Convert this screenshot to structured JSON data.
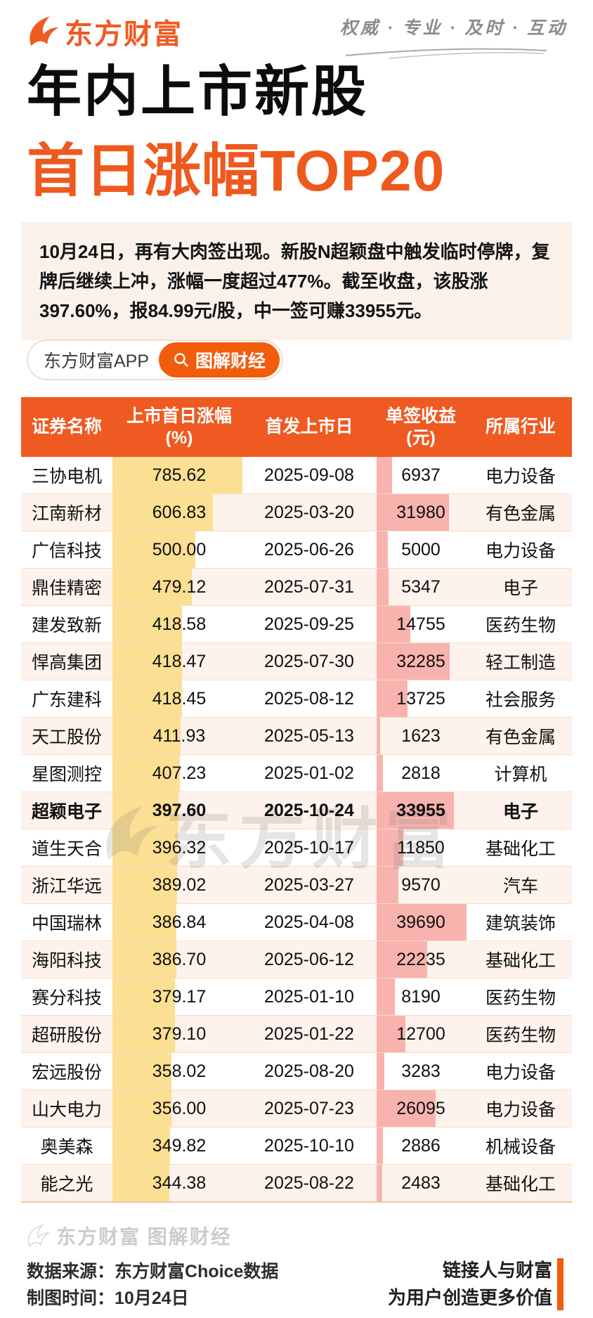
{
  "brand": {
    "logo_text": "东方财富",
    "slogan": "权威 · 专业 · 及时 · 互动",
    "accent_color": "#ee5a1e"
  },
  "title": {
    "line1": "年内上市新股",
    "line2": "首日涨幅TOP20"
  },
  "intro": {
    "text": "10月24日，再有大肉签出现。新股N超颖盘中触发临时停牌，复牌后继续上冲，涨幅一度超过477%。截至收盘，该股涨397.60%，报84.99元/股，中一签可赚33955元。"
  },
  "badge": {
    "app_label": "东方财富APP",
    "tag_label": "图解财经"
  },
  "watermark": {
    "table_text": "东方财富",
    "footer_text": "东方财富 图解财经"
  },
  "footer": {
    "source_label": "数据来源：",
    "source_value": "东方财富Choice数据",
    "time_label": "制图时间：",
    "time_value": "10月24日",
    "slogan_line1": "链接人与财富",
    "slogan_line2": "为用户创造更多价值"
  },
  "chart_data": {
    "type": "table",
    "title": "年内上市新股首日涨幅TOP20",
    "columns": [
      "证券名称",
      "上市首日涨幅\n(%)",
      "首发上市日",
      "单签收益\n(元)",
      "所属行业"
    ],
    "bar_scale": {
      "gain_max": 785.62,
      "income_max": 39690,
      "gain_bar_color": "#fbdf92",
      "income_bar_color": "#f8b3ae"
    },
    "header_bg": "#ee5a21",
    "alt_row_bg": "#fdf2ec",
    "highlight_stock": "超颖电子",
    "rows": [
      {
        "name": "三协电机",
        "gain": "785.62",
        "date": "2025-09-08",
        "income": "6937",
        "industry": "电力设备"
      },
      {
        "name": "江南新材",
        "gain": "606.83",
        "date": "2025-03-20",
        "income": "31980",
        "industry": "有色金属"
      },
      {
        "name": "广信科技",
        "gain": "500.00",
        "date": "2025-06-26",
        "income": "5000",
        "industry": "电力设备"
      },
      {
        "name": "鼎佳精密",
        "gain": "479.12",
        "date": "2025-07-31",
        "income": "5347",
        "industry": "电子"
      },
      {
        "name": "建发致新",
        "gain": "418.58",
        "date": "2025-09-25",
        "income": "14755",
        "industry": "医药生物"
      },
      {
        "name": "悍高集团",
        "gain": "418.47",
        "date": "2025-07-30",
        "income": "32285",
        "industry": "轻工制造"
      },
      {
        "name": "广东建科",
        "gain": "418.45",
        "date": "2025-08-12",
        "income": "13725",
        "industry": "社会服务"
      },
      {
        "name": "天工股份",
        "gain": "411.93",
        "date": "2025-05-13",
        "income": "1623",
        "industry": "有色金属"
      },
      {
        "name": "星图测控",
        "gain": "407.23",
        "date": "2025-01-02",
        "income": "2818",
        "industry": "计算机"
      },
      {
        "name": "超颖电子",
        "gain": "397.60",
        "date": "2025-10-24",
        "income": "33955",
        "industry": "电子",
        "highlight": true
      },
      {
        "name": "道生天合",
        "gain": "396.32",
        "date": "2025-10-17",
        "income": "11850",
        "industry": "基础化工"
      },
      {
        "name": "浙江华远",
        "gain": "389.02",
        "date": "2025-03-27",
        "income": "9570",
        "industry": "汽车"
      },
      {
        "name": "中国瑞林",
        "gain": "386.84",
        "date": "2025-04-08",
        "income": "39690",
        "industry": "建筑装饰"
      },
      {
        "name": "海阳科技",
        "gain": "386.70",
        "date": "2025-06-12",
        "income": "22235",
        "industry": "基础化工"
      },
      {
        "name": "赛分科技",
        "gain": "379.17",
        "date": "2025-01-10",
        "income": "8190",
        "industry": "医药生物"
      },
      {
        "name": "超研股份",
        "gain": "379.10",
        "date": "2025-01-22",
        "income": "12700",
        "industry": "医药生物"
      },
      {
        "name": "宏远股份",
        "gain": "358.02",
        "date": "2025-08-20",
        "income": "3283",
        "industry": "电力设备"
      },
      {
        "name": "山大电力",
        "gain": "356.00",
        "date": "2025-07-23",
        "income": "26095",
        "industry": "电力设备"
      },
      {
        "name": "奥美森",
        "gain": "349.82",
        "date": "2025-10-10",
        "income": "2886",
        "industry": "机械设备"
      },
      {
        "name": "能之光",
        "gain": "344.38",
        "date": "2025-08-22",
        "income": "2483",
        "industry": "基础化工"
      }
    ]
  }
}
